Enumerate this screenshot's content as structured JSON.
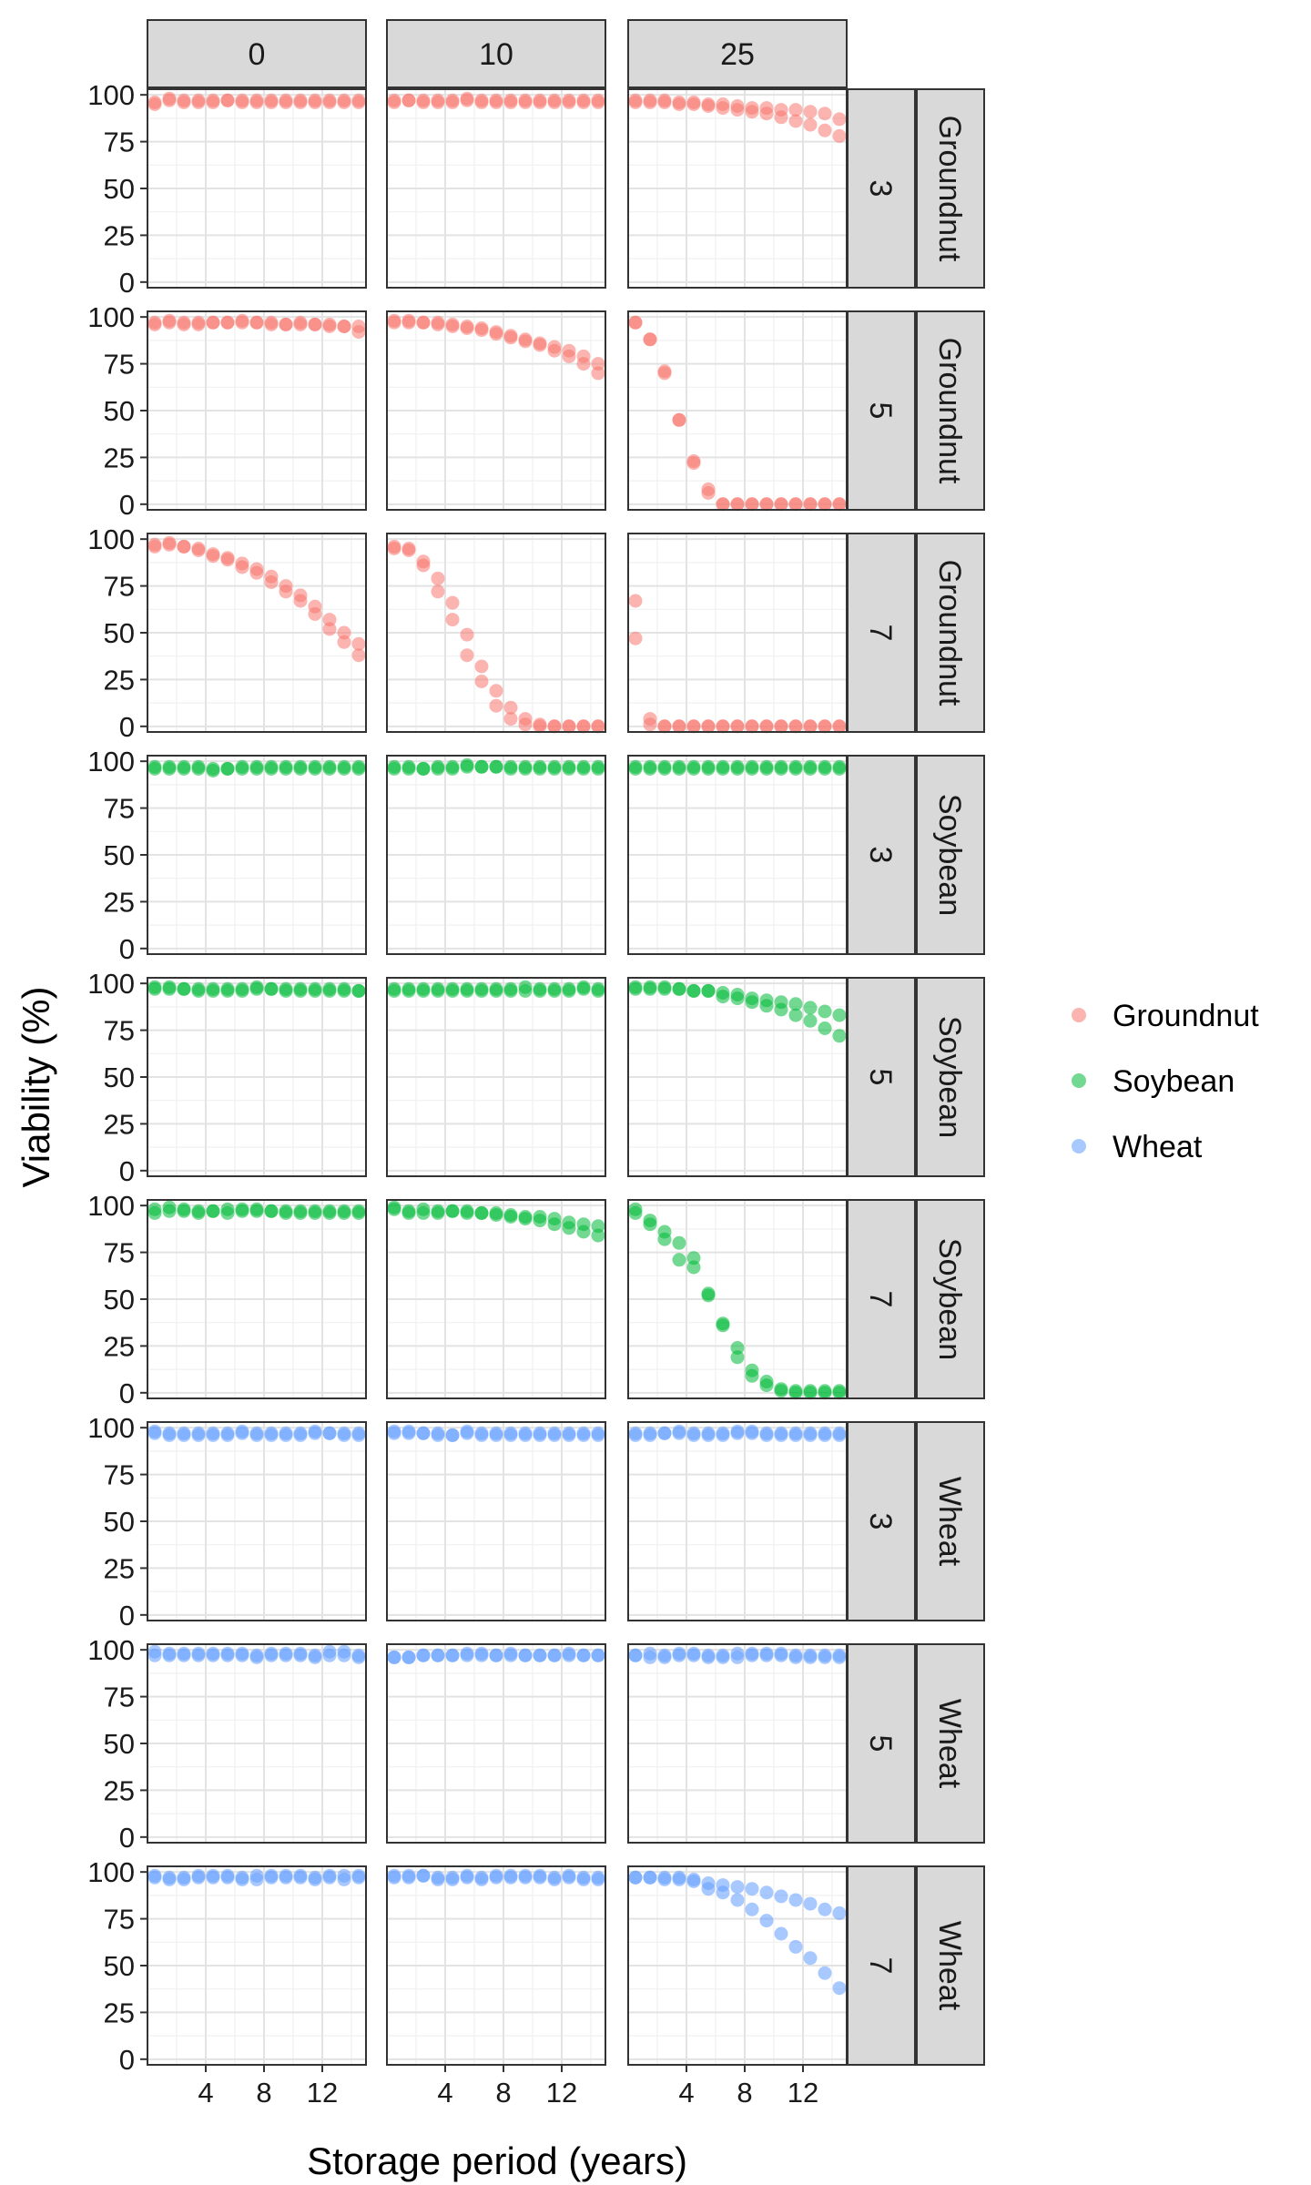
{
  "chart_data": {
    "type": "scatter",
    "xlabel": "Storage period (years)",
    "ylabel": "Viability (%)",
    "xlim": [
      0,
      15
    ],
    "ylim": [
      -3,
      103
    ],
    "x_ticks": [
      4,
      8,
      12
    ],
    "y_ticks": [
      0,
      25,
      50,
      75,
      100
    ],
    "grid": true,
    "legend_position": "right",
    "column_strips": [
      "0",
      "10",
      "25"
    ],
    "row_strips": [
      {
        "level": "3",
        "species": "Groundnut"
      },
      {
        "level": "5",
        "species": "Groundnut"
      },
      {
        "level": "7",
        "species": "Groundnut"
      },
      {
        "level": "3",
        "species": "Soybean"
      },
      {
        "level": "5",
        "species": "Soybean"
      },
      {
        "level": "7",
        "species": "Soybean"
      },
      {
        "level": "3",
        "species": "Wheat"
      },
      {
        "level": "5",
        "species": "Wheat"
      },
      {
        "level": "7",
        "species": "Wheat"
      }
    ],
    "series_colors": {
      "Groundnut": "#F8766D",
      "Soybean": "#00BA38",
      "Wheat": "#619CFF"
    },
    "legend": [
      "Groundnut",
      "Soybean",
      "Wheat"
    ],
    "x": [
      0.5,
      1.5,
      2.5,
      3.5,
      4.5,
      5.5,
      6.5,
      7.5,
      8.5,
      9.5,
      10.5,
      11.5,
      12.5,
      13.5,
      14.5
    ],
    "panels": [
      {
        "row": 0,
        "col": 0,
        "series": "Groundnut",
        "y": [
          [
            96,
            97,
            97,
            96,
            97,
            97,
            96,
            97,
            96,
            97,
            96,
            97,
            96,
            97,
            96
          ],
          [
            95,
            98,
            96,
            97,
            96,
            97,
            97,
            96,
            97,
            96,
            97,
            96,
            97,
            96,
            97
          ]
        ]
      },
      {
        "row": 0,
        "col": 1,
        "series": "Groundnut",
        "y": [
          [
            97,
            97,
            97,
            96,
            96,
            98,
            97,
            96,
            96,
            97,
            97,
            96,
            97,
            96,
            97
          ],
          [
            96,
            97,
            96,
            97,
            97,
            97,
            96,
            97,
            97,
            96,
            96,
            97,
            96,
            97,
            96
          ]
        ]
      },
      {
        "row": 0,
        "col": 2,
        "series": "Groundnut",
        "y": [
          [
            97,
            97,
            97,
            96,
            96,
            95,
            95,
            94,
            93,
            93,
            92,
            92,
            91,
            90,
            87
          ],
          [
            96,
            96,
            96,
            95,
            95,
            94,
            93,
            92,
            91,
            90,
            88,
            86,
            84,
            81,
            78
          ]
        ]
      },
      {
        "row": 1,
        "col": 0,
        "series": "Groundnut",
        "y": [
          [
            97,
            98,
            97,
            97,
            97,
            97,
            98,
            97,
            97,
            96,
            96,
            96,
            95,
            95,
            95
          ],
          [
            96,
            97,
            96,
            96,
            97,
            97,
            97,
            97,
            96,
            96,
            97,
            96,
            96,
            95,
            92
          ]
        ]
      },
      {
        "row": 1,
        "col": 1,
        "series": "Groundnut",
        "y": [
          [
            98,
            98,
            97,
            97,
            96,
            95,
            94,
            92,
            90,
            88,
            86,
            84,
            82,
            79,
            75
          ],
          [
            97,
            97,
            97,
            96,
            95,
            94,
            93,
            91,
            89,
            87,
            85,
            82,
            79,
            75,
            70
          ]
        ]
      },
      {
        "row": 1,
        "col": 2,
        "series": "Groundnut",
        "y": [
          [
            97,
            88,
            71,
            45,
            23,
            8,
            0,
            0,
            0,
            0,
            0,
            0,
            0,
            0,
            0
          ],
          [
            97,
            88,
            70,
            45,
            22,
            6,
            0,
            0,
            0,
            0,
            0,
            0,
            0,
            0,
            0
          ]
        ]
      },
      {
        "row": 2,
        "col": 0,
        "series": "Groundnut",
        "y": [
          [
            97,
            98,
            96,
            95,
            92,
            90,
            87,
            84,
            80,
            75,
            70,
            64,
            57,
            50,
            44
          ],
          [
            96,
            97,
            96,
            94,
            91,
            89,
            85,
            82,
            77,
            72,
            67,
            60,
            52,
            45,
            38
          ]
        ]
      },
      {
        "row": 2,
        "col": 1,
        "series": "Groundnut",
        "y": [
          [
            96,
            95,
            88,
            79,
            66,
            49,
            32,
            19,
            10,
            4,
            1,
            0,
            0,
            0,
            0
          ],
          [
            95,
            94,
            86,
            72,
            57,
            38,
            24,
            11,
            4,
            1,
            0,
            0,
            0,
            0,
            0
          ]
        ]
      },
      {
        "row": 2,
        "col": 2,
        "series": "Groundnut",
        "y": [
          [
            67,
            4,
            0,
            0,
            0,
            0,
            0,
            0,
            0,
            0,
            0,
            0,
            0,
            0,
            0
          ],
          [
            47,
            1,
            0,
            0,
            0,
            0,
            0,
            0,
            0,
            0,
            0,
            0,
            0,
            0,
            0
          ]
        ]
      },
      {
        "row": 3,
        "col": 0,
        "series": "Soybean",
        "y": [
          [
            97,
            97,
            97,
            97,
            96,
            96,
            97,
            96,
            97,
            97,
            96,
            97,
            96,
            97,
            97
          ],
          [
            96,
            96,
            96,
            96,
            95,
            96,
            96,
            97,
            96,
            96,
            97,
            96,
            97,
            96,
            96
          ]
        ]
      },
      {
        "row": 3,
        "col": 1,
        "series": "Soybean",
        "y": [
          [
            97,
            97,
            96,
            97,
            97,
            98,
            97,
            97,
            97,
            96,
            97,
            97,
            96,
            97,
            97
          ],
          [
            96,
            96,
            96,
            96,
            96,
            97,
            97,
            97,
            96,
            97,
            96,
            96,
            97,
            96,
            96
          ]
        ]
      },
      {
        "row": 3,
        "col": 2,
        "series": "Soybean",
        "y": [
          [
            97,
            97,
            97,
            97,
            96,
            97,
            96,
            97,
            97,
            96,
            97,
            97,
            96,
            97,
            96
          ],
          [
            96,
            96,
            96,
            96,
            97,
            96,
            97,
            96,
            96,
            97,
            96,
            96,
            97,
            96,
            97
          ]
        ]
      },
      {
        "row": 4,
        "col": 0,
        "series": "Soybean",
        "y": [
          [
            98,
            98,
            97,
            97,
            96,
            96,
            97,
            98,
            97,
            97,
            96,
            96,
            97,
            96,
            96
          ],
          [
            97,
            97,
            97,
            96,
            97,
            97,
            96,
            97,
            97,
            96,
            97,
            97,
            96,
            97,
            96
          ]
        ]
      },
      {
        "row": 4,
        "col": 1,
        "series": "Soybean",
        "y": [
          [
            97,
            97,
            97,
            97,
            97,
            97,
            97,
            97,
            96,
            98,
            97,
            96,
            97,
            98,
            97
          ],
          [
            96,
            96,
            96,
            96,
            96,
            96,
            96,
            96,
            97,
            96,
            96,
            97,
            96,
            97,
            96
          ]
        ]
      },
      {
        "row": 4,
        "col": 2,
        "series": "Soybean",
        "y": [
          [
            98,
            98,
            98,
            97,
            96,
            96,
            95,
            94,
            92,
            91,
            90,
            89,
            87,
            85,
            83
          ],
          [
            97,
            97,
            97,
            97,
            96,
            96,
            93,
            92,
            90,
            88,
            86,
            83,
            80,
            76,
            72
          ]
        ]
      },
      {
        "row": 5,
        "col": 0,
        "series": "Soybean",
        "y": [
          [
            98,
            99,
            98,
            97,
            97,
            98,
            98,
            98,
            97,
            97,
            97,
            97,
            96,
            97,
            96
          ],
          [
            96,
            97,
            97,
            96,
            97,
            96,
            97,
            97,
            97,
            96,
            96,
            96,
            97,
            96,
            97
          ]
        ]
      },
      {
        "row": 5,
        "col": 1,
        "series": "Soybean",
        "y": [
          [
            99,
            97,
            98,
            97,
            97,
            97,
            96,
            96,
            95,
            94,
            94,
            93,
            91,
            90,
            89
          ],
          [
            98,
            96,
            96,
            96,
            97,
            96,
            96,
            95,
            94,
            93,
            92,
            90,
            88,
            86,
            84
          ]
        ]
      },
      {
        "row": 5,
        "col": 2,
        "series": "Soybean",
        "y": [
          [
            98,
            92,
            86,
            80,
            72,
            52,
            37,
            24,
            12,
            6,
            2,
            1,
            1,
            1,
            1
          ],
          [
            96,
            90,
            82,
            71,
            67,
            53,
            36,
            19,
            9,
            4,
            1,
            0,
            0,
            0,
            0
          ]
        ]
      },
      {
        "row": 6,
        "col": 0,
        "series": "Wheat",
        "y": [
          [
            98,
            97,
            97,
            97,
            97,
            97,
            98,
            97,
            96,
            97,
            97,
            98,
            97,
            97,
            97
          ],
          [
            97,
            96,
            96,
            96,
            96,
            96,
            97,
            96,
            97,
            96,
            96,
            97,
            97,
            96,
            96
          ]
        ]
      },
      {
        "row": 6,
        "col": 1,
        "series": "Wheat",
        "y": [
          [
            98,
            98,
            97,
            97,
            96,
            98,
            97,
            97,
            97,
            97,
            97,
            97,
            97,
            97,
            97
          ],
          [
            97,
            97,
            97,
            96,
            96,
            97,
            96,
            96,
            96,
            96,
            96,
            96,
            96,
            96,
            96
          ]
        ]
      },
      {
        "row": 6,
        "col": 2,
        "series": "Wheat",
        "y": [
          [
            97,
            97,
            97,
            98,
            97,
            97,
            97,
            98,
            98,
            97,
            97,
            97,
            97,
            97,
            97
          ],
          [
            96,
            96,
            97,
            97,
            96,
            96,
            96,
            97,
            97,
            96,
            96,
            96,
            96,
            96,
            96
          ]
        ]
      },
      {
        "row": 7,
        "col": 0,
        "series": "Wheat",
        "y": [
          [
            99,
            98,
            98,
            98,
            98,
            98,
            98,
            97,
            98,
            98,
            98,
            97,
            99,
            99,
            97
          ],
          [
            97,
            97,
            97,
            97,
            97,
            97,
            97,
            96,
            97,
            97,
            97,
            96,
            97,
            97,
            96
          ]
        ]
      },
      {
        "row": 7,
        "col": 1,
        "series": "Wheat",
        "y": [
          [
            96,
            96,
            97,
            97,
            97,
            98,
            98,
            97,
            98,
            97,
            97,
            97,
            98,
            97,
            97
          ],
          [
            96,
            96,
            97,
            97,
            97,
            97,
            97,
            97,
            97,
            97,
            97,
            97,
            97,
            97,
            97
          ]
        ]
      },
      {
        "row": 7,
        "col": 2,
        "series": "Wheat",
        "y": [
          [
            97,
            98,
            97,
            98,
            98,
            97,
            97,
            98,
            98,
            98,
            98,
            97,
            97,
            97,
            97
          ],
          [
            97,
            96,
            96,
            97,
            97,
            96,
            96,
            96,
            97,
            97,
            97,
            96,
            96,
            96,
            96
          ]
        ]
      },
      {
        "row": 8,
        "col": 0,
        "series": "Wheat",
        "y": [
          [
            98,
            97,
            97,
            98,
            98,
            98,
            97,
            98,
            98,
            98,
            98,
            97,
            98,
            98,
            98
          ],
          [
            97,
            96,
            96,
            97,
            97,
            97,
            96,
            96,
            97,
            97,
            97,
            96,
            97,
            96,
            97
          ]
        ]
      },
      {
        "row": 8,
        "col": 1,
        "series": "Wheat",
        "y": [
          [
            98,
            98,
            98,
            97,
            97,
            98,
            97,
            98,
            98,
            98,
            98,
            97,
            98,
            97,
            97
          ],
          [
            97,
            97,
            98,
            96,
            96,
            97,
            96,
            97,
            97,
            97,
            97,
            96,
            97,
            96,
            96
          ]
        ]
      },
      {
        "row": 8,
        "col": 2,
        "series": "Wheat",
        "y": [
          [
            97,
            97,
            97,
            97,
            96,
            94,
            93,
            92,
            91,
            89,
            87,
            85,
            83,
            80,
            78
          ],
          [
            97,
            97,
            96,
            96,
            95,
            91,
            89,
            85,
            80,
            74,
            67,
            60,
            54,
            46,
            38
          ]
        ]
      }
    ]
  }
}
